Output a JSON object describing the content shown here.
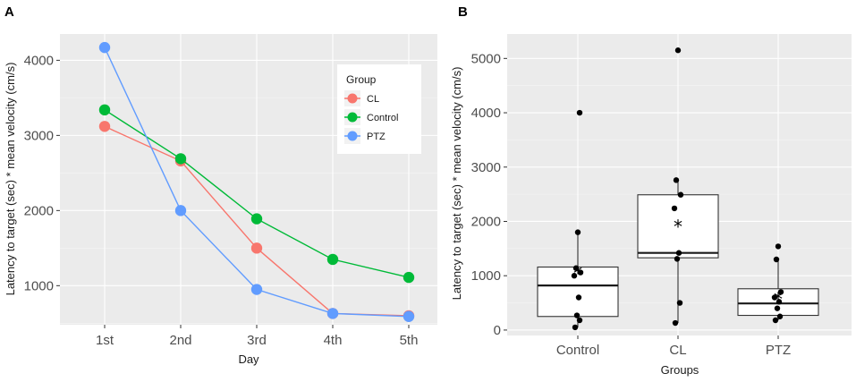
{
  "chart_data": [
    {
      "panel": "A",
      "type": "line",
      "xlabel": "Day",
      "ylabel": "Latency to target (sec) * mean velocity (cm/s)",
      "categories": [
        "1st",
        "2nd",
        "3rd",
        "4th",
        "5th"
      ],
      "ylim": [
        480,
        4350
      ],
      "yticks": [
        1000,
        2000,
        3000,
        4000
      ],
      "legend": {
        "title": "Group",
        "position": "top-right"
      },
      "series": [
        {
          "name": "CL",
          "color": "#f8766d",
          "values": [
            3120,
            2660,
            1500,
            630,
            600
          ]
        },
        {
          "name": "Control",
          "color": "#00ba38",
          "values": [
            3340,
            2690,
            1890,
            1350,
            1110
          ]
        },
        {
          "name": "PTZ",
          "color": "#619cff",
          "values": [
            4170,
            2000,
            950,
            630,
            590
          ]
        }
      ]
    },
    {
      "panel": "B",
      "type": "box",
      "xlabel": "Groups",
      "ylabel": "Latency to target (sec) * mean velocity (cm/s)",
      "categories": [
        "Control",
        "CL",
        "PTZ"
      ],
      "ylim": [
        -100,
        5450
      ],
      "yticks": [
        0,
        1000,
        2000,
        3000,
        4000,
        5000
      ],
      "boxes": [
        {
          "group": "Control",
          "q1": 250,
          "median": 820,
          "q3": 1160,
          "whisker_low": 50,
          "whisker_high": 1800,
          "mean": 1080,
          "points": [
            50,
            180,
            270,
            600,
            1000,
            1060,
            1140,
            1800,
            4000
          ]
        },
        {
          "group": "CL",
          "q1": 1330,
          "median": 1420,
          "q3": 2490,
          "whisker_low": 130,
          "whisker_high": 2760,
          "mean": 1930,
          "points": [
            130,
            500,
            1310,
            1420,
            2240,
            2490,
            2760,
            5150
          ]
        },
        {
          "group": "PTZ",
          "q1": 270,
          "median": 490,
          "q3": 760,
          "whisker_low": 180,
          "whisker_high": 1300,
          "mean": 600,
          "points": [
            180,
            250,
            400,
            520,
            600,
            700,
            1300,
            1540
          ]
        }
      ]
    }
  ]
}
